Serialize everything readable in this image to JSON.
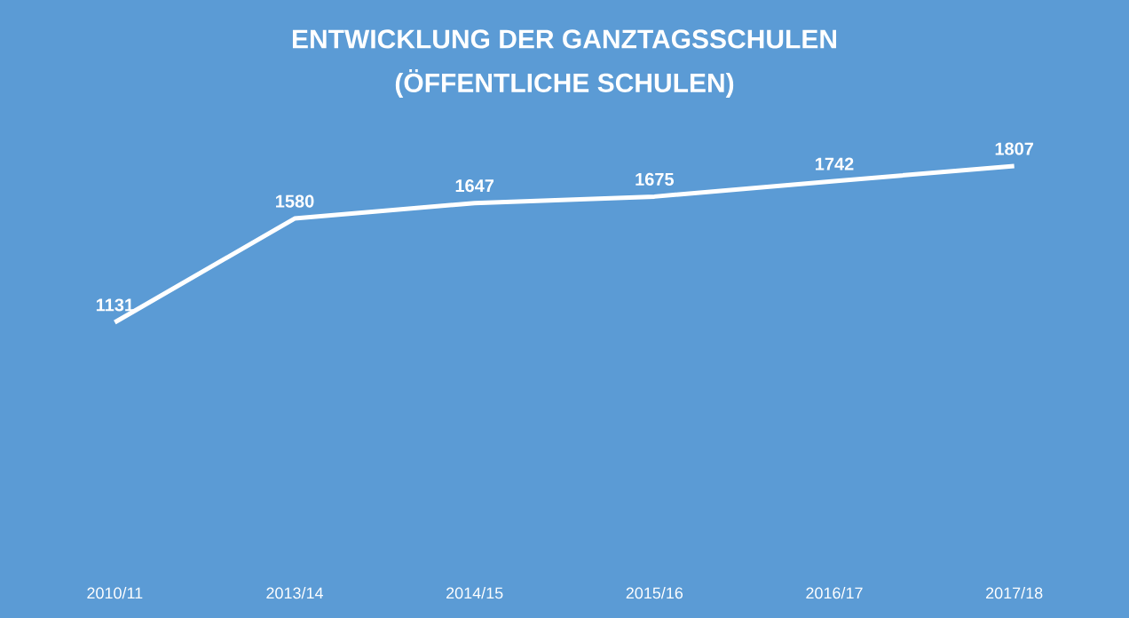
{
  "chart_data": {
    "type": "line",
    "title": "ENTWICKLUNG  DER  GANZTAGSSCHULEN",
    "subtitle": "(ÖFFENTLICHE  SCHULEN)",
    "categories": [
      "2010/11",
      "2013/14",
      "2014/15",
      "2015/16",
      "2016/17",
      "2017/18"
    ],
    "values": [
      1131,
      1580,
      1647,
      1675,
      1742,
      1807
    ],
    "color": "#ffffff",
    "data_labels": true,
    "tick_labels": "x",
    "line_style": "solid"
  }
}
